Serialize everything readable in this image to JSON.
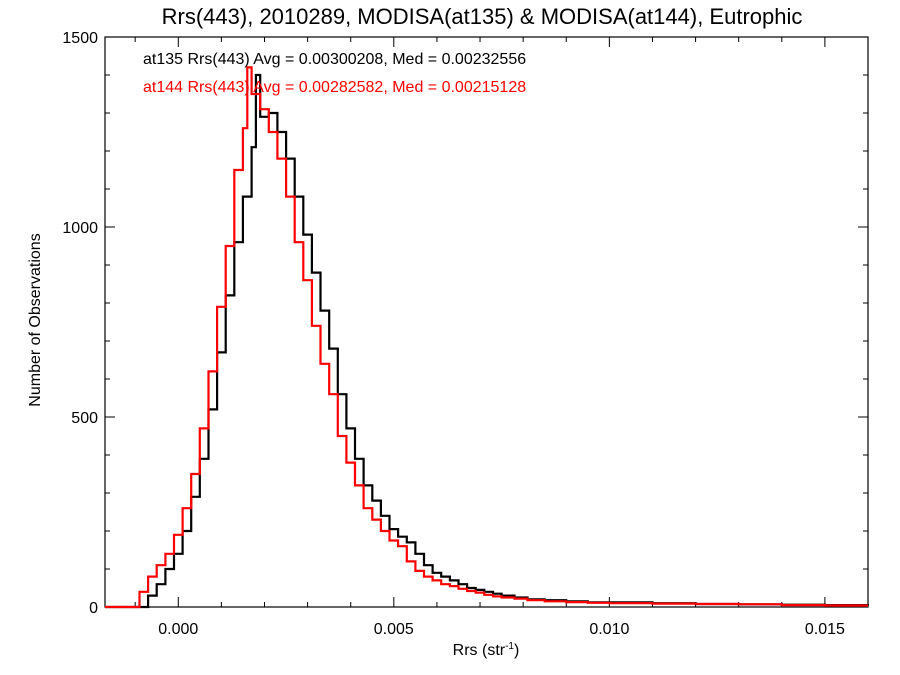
{
  "chart_data": {
    "type": "line",
    "title": "Rrs(443), 2010289, MODISA(at135) & MODISA(at144), Eutrophic",
    "xlabel_main": "Rrs (str",
    "xlabel_sup": "-1",
    "xlabel_tail": ")",
    "ylabel": "Number of Observations",
    "xlim": [
      -0.0017,
      0.016
    ],
    "ylim": [
      0,
      1500
    ],
    "x_ticks": [
      0.0,
      0.005,
      0.01,
      0.015
    ],
    "x_tick_labels": [
      "0.000",
      "0.005",
      "0.010",
      "0.015"
    ],
    "y_ticks": [
      0,
      500,
      1000,
      1500
    ],
    "y_tick_labels": [
      "0",
      "500",
      "1000",
      "1500"
    ],
    "grid": false,
    "stats_lines": [
      {
        "text": "at135 Rrs(443) Avg = 0.00300208, Med = 0.00232556",
        "color": "#000000"
      },
      {
        "text": "at144 Rrs(443) Avg = 0.00282582, Med = 0.00215128",
        "color": "#ff0000"
      }
    ],
    "series": [
      {
        "color": "#000000",
        "points": [
          [
            -0.0017,
            0
          ],
          [
            -0.0008,
            0
          ],
          [
            -0.0007,
            30
          ],
          [
            -0.0005,
            60
          ],
          [
            -0.0003,
            100
          ],
          [
            -0.0001,
            140
          ],
          [
            0.0001,
            200
          ],
          [
            0.0003,
            290
          ],
          [
            0.0005,
            390
          ],
          [
            0.0007,
            520
          ],
          [
            0.0009,
            670
          ],
          [
            0.0011,
            820
          ],
          [
            0.0013,
            960
          ],
          [
            0.0015,
            1080
          ],
          [
            0.0017,
            1210
          ],
          [
            0.0018,
            1400
          ],
          [
            0.0019,
            1290
          ],
          [
            0.0021,
            1300
          ],
          [
            0.0023,
            1250
          ],
          [
            0.0025,
            1180
          ],
          [
            0.0027,
            1080
          ],
          [
            0.0029,
            980
          ],
          [
            0.0031,
            880
          ],
          [
            0.0033,
            780
          ],
          [
            0.0035,
            680
          ],
          [
            0.0037,
            560
          ],
          [
            0.0039,
            470
          ],
          [
            0.0041,
            390
          ],
          [
            0.0043,
            320
          ],
          [
            0.0045,
            280
          ],
          [
            0.0047,
            240
          ],
          [
            0.0049,
            205
          ],
          [
            0.0051,
            185
          ],
          [
            0.0053,
            170
          ],
          [
            0.0055,
            140
          ],
          [
            0.0057,
            110
          ],
          [
            0.0059,
            90
          ],
          [
            0.0061,
            80
          ],
          [
            0.0063,
            70
          ],
          [
            0.0065,
            60
          ],
          [
            0.0067,
            50
          ],
          [
            0.0069,
            45
          ],
          [
            0.0071,
            40
          ],
          [
            0.0073,
            35
          ],
          [
            0.0075,
            30
          ],
          [
            0.0078,
            25
          ],
          [
            0.0081,
            20
          ],
          [
            0.0085,
            18
          ],
          [
            0.009,
            15
          ],
          [
            0.0095,
            12
          ],
          [
            0.01,
            12
          ],
          [
            0.011,
            10
          ],
          [
            0.012,
            8
          ],
          [
            0.013,
            7
          ],
          [
            0.014,
            6
          ],
          [
            0.015,
            5
          ],
          [
            0.016,
            4
          ]
        ]
      },
      {
        "color": "#ff0000",
        "points": [
          [
            -0.0017,
            0
          ],
          [
            -0.001,
            0
          ],
          [
            -0.0009,
            40
          ],
          [
            -0.0007,
            80
          ],
          [
            -0.0005,
            110
          ],
          [
            -0.0003,
            140
          ],
          [
            -0.0001,
            190
          ],
          [
            0.0001,
            260
          ],
          [
            0.0003,
            350
          ],
          [
            0.0005,
            470
          ],
          [
            0.0007,
            620
          ],
          [
            0.0009,
            790
          ],
          [
            0.0011,
            950
          ],
          [
            0.0013,
            1150
          ],
          [
            0.0015,
            1260
          ],
          [
            0.0016,
            1420
          ],
          [
            0.0017,
            1350
          ],
          [
            0.0019,
            1310
          ],
          [
            0.0021,
            1250
          ],
          [
            0.0023,
            1180
          ],
          [
            0.0025,
            1080
          ],
          [
            0.0027,
            960
          ],
          [
            0.0029,
            860
          ],
          [
            0.0031,
            740
          ],
          [
            0.0033,
            640
          ],
          [
            0.0035,
            560
          ],
          [
            0.0037,
            450
          ],
          [
            0.0039,
            380
          ],
          [
            0.0041,
            320
          ],
          [
            0.0043,
            260
          ],
          [
            0.0045,
            230
          ],
          [
            0.0047,
            200
          ],
          [
            0.0049,
            175
          ],
          [
            0.0051,
            160
          ],
          [
            0.0053,
            120
          ],
          [
            0.0055,
            95
          ],
          [
            0.0057,
            80
          ],
          [
            0.0059,
            70
          ],
          [
            0.0061,
            60
          ],
          [
            0.0063,
            55
          ],
          [
            0.0065,
            48
          ],
          [
            0.0067,
            42
          ],
          [
            0.0069,
            38
          ],
          [
            0.0071,
            32
          ],
          [
            0.0073,
            28
          ],
          [
            0.0075,
            25
          ],
          [
            0.0078,
            22
          ],
          [
            0.0081,
            18
          ],
          [
            0.0085,
            15
          ],
          [
            0.009,
            13
          ],
          [
            0.0095,
            11
          ],
          [
            0.01,
            10
          ],
          [
            0.011,
            9
          ],
          [
            0.012,
            8
          ],
          [
            0.013,
            7
          ],
          [
            0.014,
            5
          ],
          [
            0.015,
            4
          ],
          [
            0.016,
            4
          ]
        ]
      }
    ]
  }
}
